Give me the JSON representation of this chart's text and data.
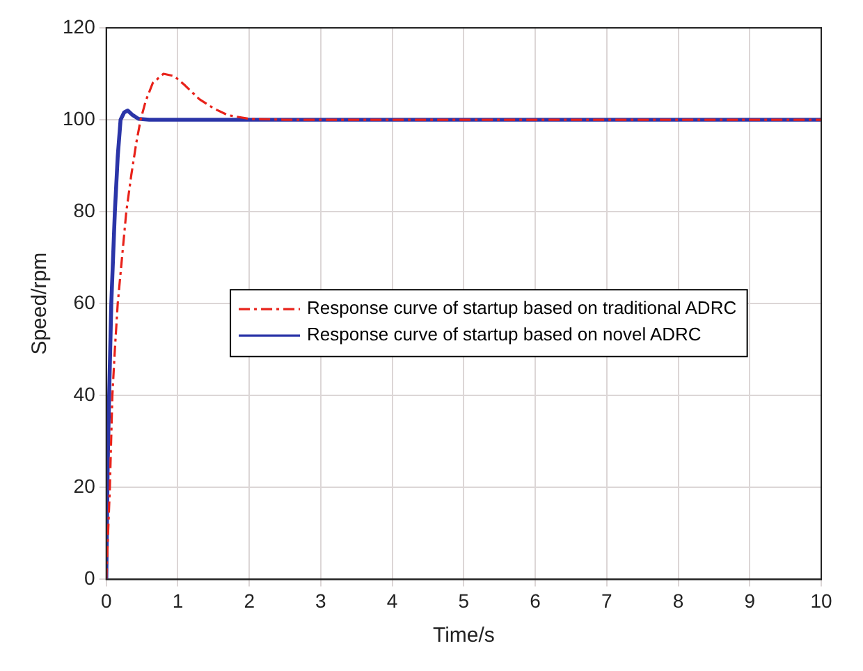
{
  "chart_data": {
    "type": "line",
    "xlabel": "Time/s",
    "ylabel": "Speed/rpm",
    "xlim": [
      0,
      10
    ],
    "xticks": [
      0,
      1,
      2,
      3,
      4,
      5,
      6,
      7,
      8,
      9,
      10
    ],
    "ylim": [
      0,
      120
    ],
    "yticks": [
      0,
      20,
      40,
      60,
      80,
      100,
      120
    ],
    "grid": true,
    "legend": "center",
    "marker": "none",
    "series": [
      {
        "name": "Response curve of startup based on traditional ADRC",
        "color": "#e8221a",
        "line_style": "dashed",
        "x": [
          0,
          0.05,
          0.085,
          0.12,
          0.16,
          0.22,
          0.28,
          0.35,
          0.42,
          0.48,
          0.55,
          0.65,
          0.8,
          0.95,
          1.1,
          1.3,
          1.5,
          1.7,
          2,
          2.5,
          3,
          10
        ],
        "values": [
          0,
          20,
          40,
          50,
          60,
          70,
          80,
          88,
          95,
          100,
          104,
          108,
          110,
          109.5,
          107.5,
          104.5,
          102.5,
          101,
          100.2,
          100,
          100,
          100
        ]
      },
      {
        "name": "Response curve of startup based on novel ADRC",
        "color": "#2b35a8",
        "line_style": "solid",
        "x": [
          0,
          0.02,
          0.04,
          0.07,
          0.12,
          0.16,
          0.2,
          0.25,
          0.3,
          0.37,
          0.45,
          0.6,
          10
        ],
        "values": [
          0,
          25,
          40,
          60,
          80,
          92,
          100,
          101.6,
          102,
          101,
          100.2,
          100,
          100
        ]
      }
    ]
  }
}
